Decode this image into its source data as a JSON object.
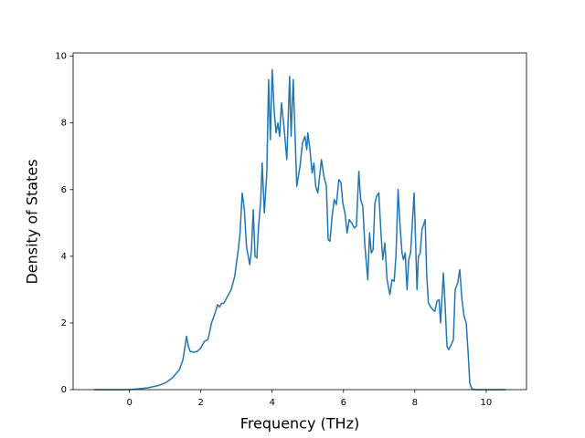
{
  "chart_data": {
    "type": "line",
    "xlabel": "Frequency (THz)",
    "ylabel": "Density of States",
    "x": [
      -1.0,
      0,
      0.5,
      0.8,
      1.0,
      1.2,
      1.4,
      1.5,
      1.6,
      1.65,
      1.7,
      1.8,
      1.9,
      2.0,
      2.1,
      2.2,
      2.3,
      2.4,
      2.47,
      2.52,
      2.58,
      2.65,
      2.75,
      2.85,
      2.95,
      3.0,
      3.05,
      3.1,
      3.16,
      3.22,
      3.28,
      3.37,
      3.42,
      3.47,
      3.52,
      3.57,
      3.62,
      3.68,
      3.72,
      3.78,
      3.85,
      3.9,
      3.95,
      4.0,
      4.06,
      4.11,
      4.16,
      4.21,
      4.26,
      4.33,
      4.41,
      4.49,
      4.53,
      4.59,
      4.64,
      4.69,
      4.78,
      4.85,
      4.92,
      4.97,
      5.0,
      5.06,
      5.12,
      5.17,
      5.22,
      5.28,
      5.33,
      5.38,
      5.45,
      5.52,
      5.57,
      5.62,
      5.68,
      5.74,
      5.8,
      5.87,
      5.93,
      5.98,
      6.04,
      6.1,
      6.16,
      6.23,
      6.3,
      6.36,
      6.43,
      6.48,
      6.54,
      6.6,
      6.68,
      6.73,
      6.78,
      6.83,
      6.88,
      6.93,
      6.99,
      7.05,
      7.1,
      7.16,
      7.22,
      7.3,
      7.36,
      7.42,
      7.47,
      7.53,
      7.58,
      7.64,
      7.68,
      7.73,
      7.78,
      7.83,
      7.88,
      7.98,
      8.06,
      8.1,
      8.15,
      8.2,
      8.29,
      8.33,
      8.38,
      8.43,
      8.5,
      8.56,
      8.62,
      8.68,
      8.72,
      8.8,
      8.85,
      8.9,
      8.95,
      9.02,
      9.08,
      9.13,
      9.2,
      9.26,
      9.32,
      9.38,
      9.44,
      9.5,
      9.54,
      9.6,
      9.7,
      10.55
    ],
    "series": [
      {
        "color": "#1f77b4",
        "values": [
          0,
          0,
          0.05,
          0.12,
          0.2,
          0.35,
          0.6,
          0.9,
          1.6,
          1.3,
          1.15,
          1.12,
          1.15,
          1.25,
          1.45,
          1.5,
          2.0,
          2.3,
          2.55,
          2.48,
          2.58,
          2.6,
          2.8,
          3.0,
          3.4,
          3.8,
          4.2,
          4.7,
          5.9,
          5.4,
          4.3,
          3.75,
          4.2,
          5.4,
          4.0,
          3.95,
          4.9,
          5.7,
          6.8,
          5.3,
          6.5,
          9.3,
          7.5,
          9.6,
          8.3,
          7.7,
          8.0,
          7.6,
          8.6,
          7.9,
          6.9,
          9.4,
          7.6,
          9.3,
          7.7,
          6.1,
          6.7,
          7.4,
          7.6,
          7.2,
          7.7,
          7.2,
          6.5,
          6.8,
          6.1,
          5.9,
          6.4,
          6.9,
          6.4,
          6.1,
          4.5,
          4.45,
          5.2,
          5.7,
          5.55,
          6.3,
          6.2,
          5.6,
          5.3,
          4.7,
          5.1,
          5.0,
          4.85,
          4.9,
          6.55,
          5.7,
          5.5,
          4.3,
          3.3,
          4.7,
          4.1,
          4.2,
          5.6,
          5.8,
          5.9,
          4.7,
          3.9,
          4.4,
          3.3,
          2.85,
          3.3,
          3.25,
          4.0,
          6.0,
          5.0,
          4.1,
          3.9,
          4.1,
          3.0,
          3.9,
          4.1,
          5.9,
          3.0,
          4.0,
          4.1,
          4.8,
          5.1,
          3.5,
          2.6,
          2.5,
          2.4,
          2.35,
          2.65,
          2.7,
          2.0,
          3.5,
          2.5,
          1.3,
          1.2,
          1.35,
          1.5,
          3.0,
          3.2,
          3.6,
          2.7,
          2.2,
          2.0,
          1.0,
          0.2,
          0.02,
          0,
          0
        ]
      }
    ],
    "xlim": [
      -1.58,
      11.13
    ],
    "ylim": [
      0,
      10.1
    ],
    "xticks": [
      0,
      2,
      4,
      6,
      8,
      10
    ],
    "yticks": [
      0,
      2,
      4,
      6,
      8,
      10
    ]
  }
}
